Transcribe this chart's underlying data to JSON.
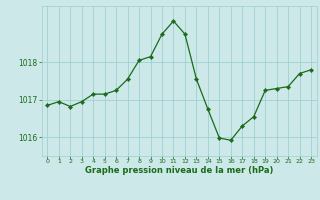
{
  "x": [
    0,
    1,
    2,
    3,
    4,
    5,
    6,
    7,
    8,
    9,
    10,
    11,
    12,
    13,
    14,
    15,
    16,
    17,
    18,
    19,
    20,
    21,
    22,
    23
  ],
  "y": [
    1016.85,
    1016.95,
    1016.82,
    1016.95,
    1017.15,
    1017.15,
    1017.25,
    1017.55,
    1018.05,
    1018.15,
    1018.75,
    1019.1,
    1018.75,
    1017.55,
    1016.75,
    1015.98,
    1015.92,
    1016.3,
    1016.55,
    1017.25,
    1017.3,
    1017.35,
    1017.7,
    1017.8
  ],
  "line_color": "#1a6b1a",
  "marker_color": "#1a6b1a",
  "bg_color": "#cce8e8",
  "grid_color": "#9fcfcf",
  "axis_label_color": "#1a6b1a",
  "tick_color": "#1a6b1a",
  "xlabel": "Graphe pression niveau de la mer (hPa)",
  "yticks": [
    1016,
    1017,
    1018
  ],
  "ylim": [
    1015.5,
    1019.5
  ],
  "xlim": [
    -0.5,
    23.5
  ]
}
